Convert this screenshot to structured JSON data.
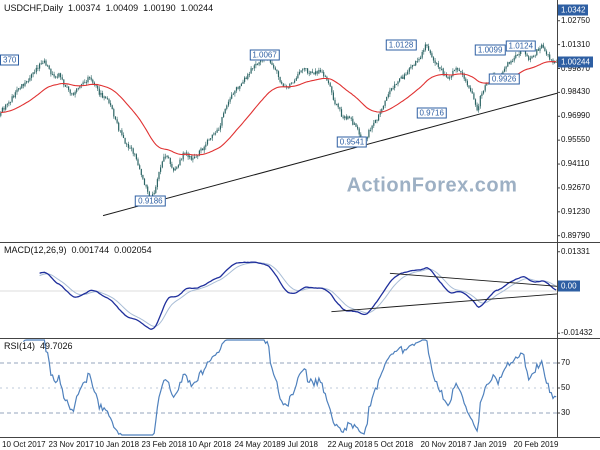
{
  "header": {
    "symbol": "USDCHF,Daily",
    "open": "1.00374",
    "high": "1.00409",
    "low": "1.00190",
    "close": "1.00244"
  },
  "watermark": "ActionForex.com",
  "colors": {
    "candle": "#2a6363",
    "ma_line": "#e03232",
    "macd_line": "#1f2f9c",
    "macd_signal": "#a9bdd6",
    "rsi_line": "#4f81bd",
    "accent_blue": "#2e5fa3",
    "watermark": "#9db0c4",
    "trendline": "#1a1a1a",
    "level_dash": "#94a6bc",
    "axis_line": "#444444",
    "axis_text": "#111111",
    "background": "#ffffff"
  },
  "x_axis": {
    "labels": [
      "10 Oct 2017",
      "23 Nov 2017",
      "10 Jan 2018",
      "23 Feb 2018",
      "10 Apr 2018",
      "24 May 2018",
      "9 Jul 2018",
      "22 Aug 2018",
      "5 Oct 2018",
      "20 Nov 2018",
      "7 Jan 2019",
      "20 Feb 2019"
    ]
  },
  "chart_data": [
    {
      "type": "candlestick",
      "title": "USDCHF,Daily",
      "ylim": [
        0.8941,
        1.04
      ],
      "axis_ticks": [
        "1.02750",
        "1.01310",
        "0.99870",
        "0.98430",
        "0.96990",
        "0.95550",
        "0.94110",
        "0.92670",
        "0.91230",
        "0.89790"
      ],
      "current_price": "1.00244",
      "upper_level": "1.0342",
      "ma_period": 45,
      "series_keypoints": {
        "t": [
          0,
          0.015,
          0.03,
          0.045,
          0.06,
          0.075,
          0.085,
          0.095,
          0.105,
          0.115,
          0.13,
          0.145,
          0.16,
          0.175,
          0.19,
          0.2,
          0.21,
          0.225,
          0.24,
          0.255,
          0.27,
          0.28,
          0.29,
          0.3,
          0.31,
          0.32,
          0.33,
          0.345,
          0.36,
          0.375,
          0.39,
          0.405,
          0.42,
          0.435,
          0.45,
          0.465,
          0.48,
          0.49,
          0.505,
          0.515,
          0.53,
          0.545,
          0.56,
          0.575,
          0.59,
          0.6,
          0.615,
          0.63,
          0.645,
          0.655,
          0.665,
          0.68,
          0.695,
          0.71,
          0.725,
          0.74,
          0.755,
          0.765,
          0.775,
          0.79,
          0.805,
          0.82,
          0.835,
          0.85,
          0.858,
          0.865,
          0.875,
          0.885,
          0.895,
          0.91,
          0.925,
          0.94,
          0.95,
          0.965,
          0.975,
          0.985,
          0.995,
          1.0
        ],
        "close": [
          0.973,
          0.978,
          0.986,
          0.99,
          0.996,
          1.0037,
          1.0,
          0.993,
          0.996,
          0.988,
          0.983,
          0.989,
          0.993,
          0.985,
          0.98,
          0.974,
          0.964,
          0.953,
          0.948,
          0.933,
          0.9186,
          0.929,
          0.943,
          0.947,
          0.938,
          0.941,
          0.948,
          0.943,
          0.949,
          0.956,
          0.961,
          0.974,
          0.985,
          0.99,
          0.998,
          1.003,
          1.0067,
          1.001,
          0.99,
          0.986,
          0.993,
          0.999,
          0.995,
          0.998,
          0.99,
          0.979,
          0.97,
          0.968,
          0.96,
          0.9541,
          0.962,
          0.97,
          0.981,
          0.99,
          0.994,
          0.999,
          1.006,
          1.0128,
          1.006,
          0.999,
          0.993,
          0.999,
          0.993,
          0.982,
          0.9716,
          0.984,
          0.989,
          0.994,
          0.9926,
          1.0,
          1.006,
          1.0099,
          1.004,
          1.009,
          1.0124,
          1.006,
          1.002,
          1.00244
        ]
      },
      "price_labels": [
        {
          "t": 0.0,
          "price": 1.0037,
          "text": "370",
          "edge": "left"
        },
        {
          "t": 0.27,
          "price": 0.9186,
          "text": "0.9186"
        },
        {
          "t": 0.475,
          "price": 1.0067,
          "text": "1.0067"
        },
        {
          "t": 0.632,
          "price": 0.9541,
          "text": "0.9541"
        },
        {
          "t": 0.72,
          "price": 1.0128,
          "text": "1.0128"
        },
        {
          "t": 0.775,
          "price": 0.9716,
          "text": "0.9716"
        },
        {
          "t": 0.88,
          "price": 1.0099,
          "text": "1.0099"
        },
        {
          "t": 0.905,
          "price": 0.9926,
          "text": "0.9926"
        },
        {
          "t": 0.935,
          "price": 1.0124,
          "text": "1.0124"
        }
      ],
      "trendline": {
        "t1": 0.185,
        "price1": 0.91,
        "t2": 1.0,
        "price2": 0.9838
      }
    },
    {
      "type": "line",
      "name": "MACD",
      "label": "MACD(12,26,9)",
      "value_main": "0.001744",
      "value_signal": "0.002054",
      "params": [
        12,
        26,
        9
      ],
      "axis_labels": [
        {
          "v": 0.01331,
          "text": "0.01331"
        },
        {
          "v": -0.01432,
          "text": "-0.01432"
        }
      ],
      "current_box": {
        "v": 0.001744,
        "text": "0.00"
      },
      "trendlines": [
        {
          "t1": 0.7,
          "v1": 0.006,
          "t2": 1.0,
          "v2": 0.0016
        },
        {
          "t1": 0.595,
          "v1": -0.007,
          "t2": 1.0,
          "v2": -0.001
        }
      ]
    },
    {
      "type": "line",
      "name": "RSI",
      "label": "RSI(14)",
      "value": "49.7026",
      "period": 14,
      "levels": [
        {
          "v": 70,
          "text": "70"
        },
        {
          "v": 50,
          "text": "50"
        },
        {
          "v": 30,
          "text": "30"
        }
      ]
    }
  ]
}
